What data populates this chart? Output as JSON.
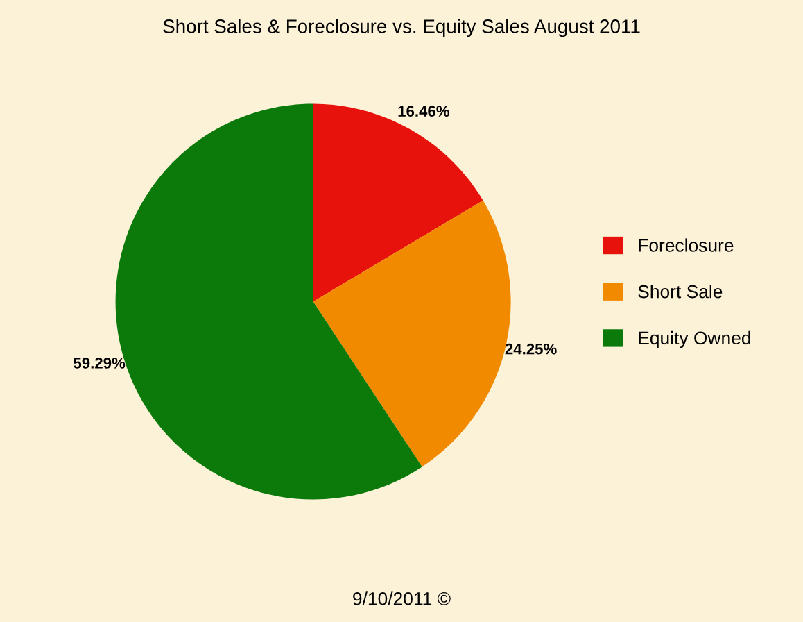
{
  "chart_data": {
    "type": "pie",
    "title": "Short Sales & Foreclosure vs. Equity Sales August 2011",
    "categories": [
      "Foreclosure",
      "Short Sale",
      "Equity Owned"
    ],
    "values": [
      16.46,
      24.25,
      59.29
    ],
    "value_labels": [
      "16.46%",
      "24.25%",
      "59.29%"
    ],
    "colors": [
      "#e8120c",
      "#f28a00",
      "#0b7a0b"
    ],
    "legend": "right",
    "annotations": [
      "9/10/2011 ©"
    ]
  }
}
